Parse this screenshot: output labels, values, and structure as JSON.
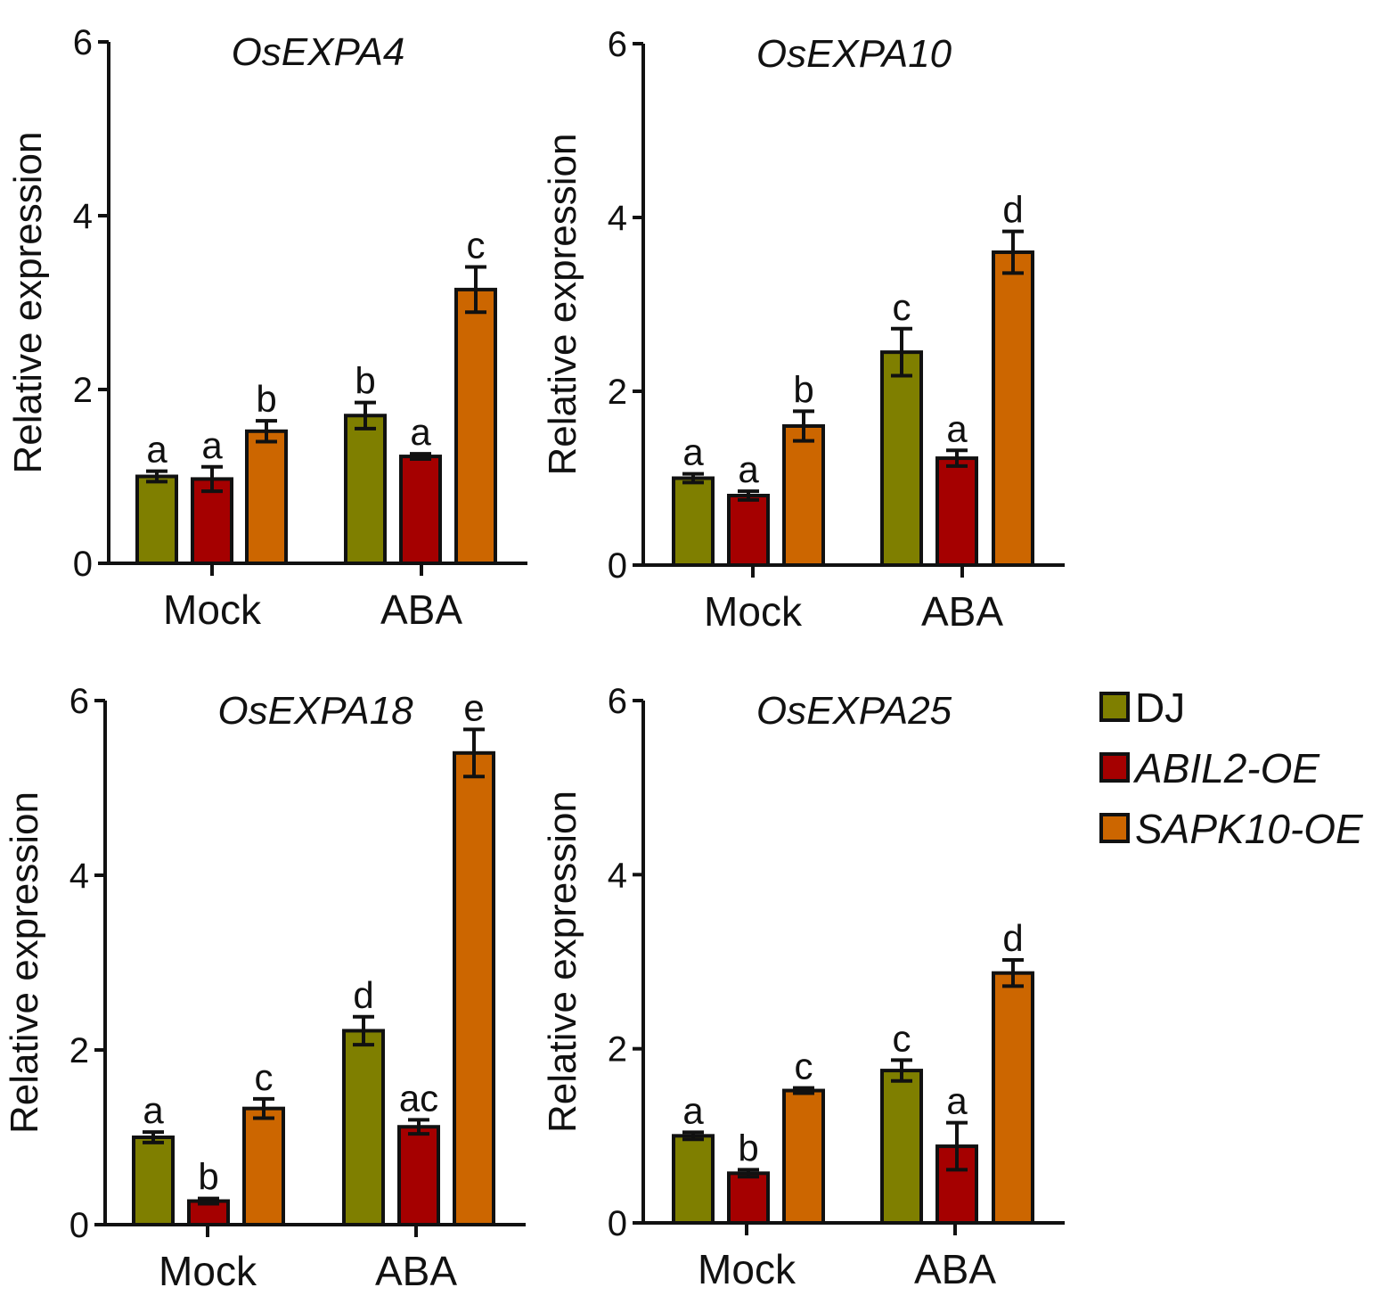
{
  "colors": {
    "DJ": "#7f7f00",
    "ABIL2-OE": "#a50000",
    "SAPK10-OE": "#cc6600",
    "axis": "#111111"
  },
  "legend": [
    {
      "key": "DJ",
      "label": "DJ",
      "italic": false
    },
    {
      "key": "ABIL2-OE",
      "label": "ABIL2-OE",
      "italic": true
    },
    {
      "key": "SAPK10-OE",
      "label": "SAPK10-OE",
      "italic": true
    }
  ],
  "chart_data": [
    {
      "type": "bar",
      "title": "OsEXPA4",
      "ylabel": "Relative expression",
      "xlabel": "",
      "ylim": [
        0,
        6
      ],
      "yticks": [
        "0",
        "2",
        "4",
        "6"
      ],
      "categories": [
        "Mock",
        "ABA"
      ],
      "series": [
        {
          "name": "DJ",
          "values": [
            1.0,
            1.7
          ],
          "errors": [
            0.06,
            0.15
          ],
          "letters": [
            "a",
            "b"
          ]
        },
        {
          "name": "ABIL2-OE",
          "values": [
            0.97,
            1.23
          ],
          "errors": [
            0.14,
            0.03
          ],
          "letters": [
            "a",
            "a"
          ]
        },
        {
          "name": "SAPK10-OE",
          "values": [
            1.52,
            3.15
          ],
          "errors": [
            0.12,
            0.26
          ],
          "letters": [
            "b",
            "c"
          ]
        }
      ]
    },
    {
      "type": "bar",
      "title": "OsEXPA10",
      "ylabel": "Relative expression",
      "xlabel": "",
      "ylim": [
        0,
        6
      ],
      "yticks": [
        "0",
        "2",
        "4",
        "6"
      ],
      "categories": [
        "Mock",
        "ABA"
      ],
      "series": [
        {
          "name": "DJ",
          "values": [
            1.0,
            2.45
          ],
          "errors": [
            0.05,
            0.27
          ],
          "letters": [
            "a",
            "c"
          ]
        },
        {
          "name": "ABIL2-OE",
          "values": [
            0.8,
            1.23
          ],
          "errors": [
            0.05,
            0.09
          ],
          "letters": [
            "a",
            "a"
          ]
        },
        {
          "name": "SAPK10-OE",
          "values": [
            1.6,
            3.6
          ],
          "errors": [
            0.17,
            0.24
          ],
          "letters": [
            "b",
            "d"
          ]
        }
      ]
    },
    {
      "type": "bar",
      "title": "OsEXPA18",
      "ylabel": "Relative expression",
      "xlabel": "",
      "ylim": [
        0,
        6
      ],
      "yticks": [
        "0",
        "2",
        "4",
        "6"
      ],
      "categories": [
        "Mock",
        "ABA"
      ],
      "series": [
        {
          "name": "DJ",
          "values": [
            1.0,
            2.22
          ],
          "errors": [
            0.06,
            0.16
          ],
          "letters": [
            "a",
            "d"
          ]
        },
        {
          "name": "ABIL2-OE",
          "values": [
            0.27,
            1.12
          ],
          "errors": [
            0.03,
            0.08
          ],
          "letters": [
            "b",
            "ac"
          ]
        },
        {
          "name": "SAPK10-OE",
          "values": [
            1.33,
            5.4
          ],
          "errors": [
            0.11,
            0.27
          ],
          "letters": [
            "c",
            "e"
          ]
        }
      ]
    },
    {
      "type": "bar",
      "title": "OsEXPA25",
      "ylabel": "Relative expression",
      "xlabel": "",
      "ylim": [
        0,
        6
      ],
      "yticks": [
        "0",
        "2",
        "4",
        "6"
      ],
      "categories": [
        "Mock",
        "ABA"
      ],
      "series": [
        {
          "name": "DJ",
          "values": [
            1.0,
            1.75
          ],
          "errors": [
            0.04,
            0.12
          ],
          "letters": [
            "a",
            "c"
          ]
        },
        {
          "name": "ABIL2-OE",
          "values": [
            0.57,
            0.88
          ],
          "errors": [
            0.04,
            0.27
          ],
          "letters": [
            "b",
            "a"
          ]
        },
        {
          "name": "SAPK10-OE",
          "values": [
            1.52,
            2.87
          ],
          "errors": [
            0.03,
            0.15
          ],
          "letters": [
            "c",
            "d"
          ]
        }
      ]
    }
  ]
}
